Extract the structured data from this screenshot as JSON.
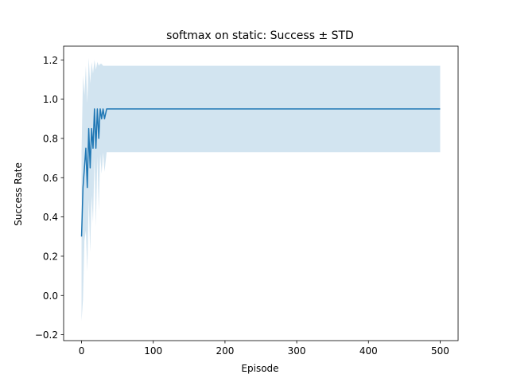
{
  "chart_data": {
    "type": "line",
    "title": "softmax on static: Success ± STD",
    "xlabel": "Episode",
    "ylabel": "Success Rate",
    "xlim": [
      -25,
      525
    ],
    "ylim": [
      -0.23,
      1.27
    ],
    "xticks": [
      0,
      100,
      200,
      300,
      400,
      500
    ],
    "yticks": [
      -0.2,
      0.0,
      0.2,
      0.4,
      0.6,
      0.8,
      1.0,
      1.2
    ],
    "grid": false,
    "line_color": "#1f77b4",
    "band_color": "#1f77b4",
    "band_opacity": 0.2,
    "series": [
      {
        "x": [
          0,
          2,
          4,
          6,
          8,
          10,
          12,
          14,
          16,
          18,
          20,
          22,
          24,
          26,
          28,
          30,
          32,
          35,
          40,
          60,
          100,
          200,
          300,
          400,
          500
        ],
        "mean": [
          0.3,
          0.55,
          0.65,
          0.75,
          0.55,
          0.85,
          0.65,
          0.85,
          0.75,
          0.95,
          0.75,
          0.95,
          0.8,
          0.95,
          0.9,
          0.95,
          0.9,
          0.95,
          0.95,
          0.95,
          0.95,
          0.95,
          0.95,
          0.95,
          0.95
        ],
        "upper": [
          0.73,
          1.12,
          1.02,
          1.17,
          0.98,
          1.21,
          1.08,
          1.19,
          1.13,
          1.2,
          1.15,
          1.19,
          1.17,
          1.18,
          1.18,
          1.17,
          1.17,
          1.17,
          1.17,
          1.17,
          1.17,
          1.17,
          1.17,
          1.17,
          1.17
        ],
        "lower": [
          -0.13,
          -0.02,
          0.28,
          0.33,
          0.12,
          0.49,
          0.22,
          0.51,
          0.37,
          0.7,
          0.35,
          0.71,
          0.43,
          0.72,
          0.62,
          0.73,
          0.63,
          0.73,
          0.73,
          0.73,
          0.73,
          0.73,
          0.73,
          0.73,
          0.73
        ]
      }
    ]
  }
}
